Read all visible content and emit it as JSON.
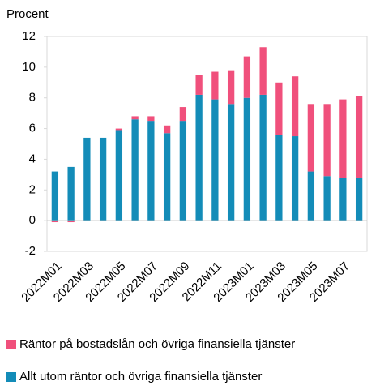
{
  "chart_data": {
    "type": "bar",
    "stacked": true,
    "ylabel": "Procent",
    "categories": [
      "2022M01",
      null,
      "2022M03",
      null,
      "2022M05",
      null,
      "2022M07",
      null,
      "2022M09",
      null,
      "2022M11",
      null,
      "2023M01",
      null,
      "2023M03",
      null,
      "2023M05",
      null,
      "2023M07",
      null
    ],
    "series": [
      {
        "name": "Allt utom räntor och övriga finansiella tjänster",
        "color": "#138cb8",
        "values": [
          3.2,
          3.5,
          5.4,
          5.4,
          5.9,
          6.6,
          6.5,
          5.7,
          6.5,
          8.2,
          7.9,
          7.6,
          8.0,
          8.2,
          5.6,
          5.5,
          3.2,
          2.9,
          2.8,
          2.8
        ]
      },
      {
        "name": "Räntor på bostadslån och övriga finansiella tjänster",
        "color": "#f0507c",
        "values": [
          -0.1,
          -0.1,
          0,
          0,
          0.1,
          0.2,
          0.3,
          0.5,
          0.9,
          1.3,
          1.8,
          2.2,
          2.7,
          3.1,
          3.4,
          3.9,
          4.4,
          4.7,
          5.1,
          5.3
        ]
      }
    ],
    "ylim": [
      -2,
      12
    ],
    "yticks": [
      -2,
      0,
      2,
      4,
      6,
      8,
      10,
      12
    ],
    "grid": false
  }
}
